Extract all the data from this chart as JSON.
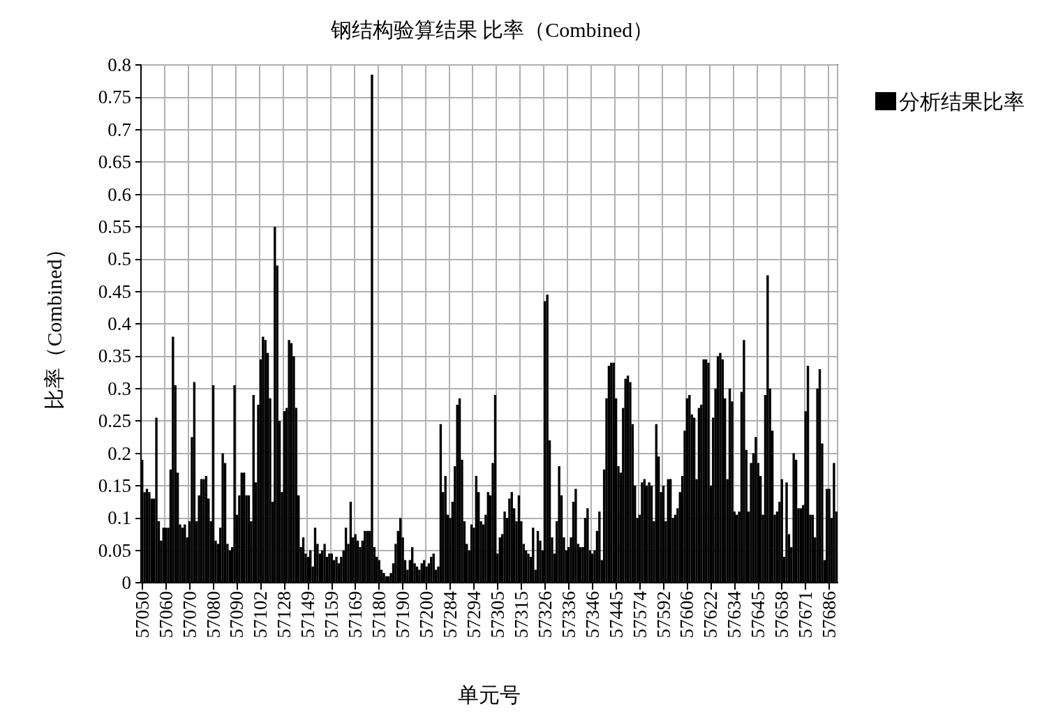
{
  "chart_data": {
    "type": "bar",
    "title": "钢结构验算结果 比率（Combined）",
    "xlabel": "单元号",
    "ylabel": "比率（Combined）",
    "categories": [
      "57050",
      null,
      null,
      null,
      null,
      null,
      null,
      null,
      null,
      null,
      "57060",
      null,
      null,
      null,
      null,
      null,
      null,
      null,
      null,
      null,
      "57070",
      null,
      null,
      null,
      null,
      null,
      null,
      null,
      null,
      null,
      "57080",
      null,
      null,
      null,
      null,
      null,
      null,
      null,
      null,
      null,
      "57090",
      null,
      null,
      null,
      null,
      null,
      null,
      null,
      null,
      null,
      "57102",
      null,
      null,
      null,
      null,
      null,
      null,
      null,
      null,
      null,
      "57128",
      null,
      null,
      null,
      null,
      null,
      null,
      null,
      null,
      null,
      "57149",
      null,
      null,
      null,
      null,
      null,
      null,
      null,
      null,
      null,
      "57159",
      null,
      null,
      null,
      null,
      null,
      null,
      null,
      null,
      null,
      "57169",
      null,
      null,
      null,
      null,
      null,
      null,
      null,
      null,
      null,
      "57180",
      null,
      null,
      null,
      null,
      null,
      null,
      null,
      null,
      null,
      "57190",
      null,
      null,
      null,
      null,
      null,
      null,
      null,
      null,
      null,
      "57200",
      null,
      null,
      null,
      null,
      null,
      null,
      null,
      null,
      null,
      "57284",
      null,
      null,
      null,
      null,
      null,
      null,
      null,
      null,
      null,
      "57294",
      null,
      null,
      null,
      null,
      null,
      null,
      null,
      null,
      null,
      "57305",
      null,
      null,
      null,
      null,
      null,
      null,
      null,
      null,
      null,
      "57315",
      null,
      null,
      null,
      null,
      null,
      null,
      null,
      null,
      null,
      "57326",
      null,
      null,
      null,
      null,
      null,
      null,
      null,
      null,
      null,
      "57336",
      null,
      null,
      null,
      null,
      null,
      null,
      null,
      null,
      null,
      "57346",
      null,
      null,
      null,
      null,
      null,
      null,
      null,
      null,
      null,
      "57445",
      null,
      null,
      null,
      null,
      null,
      null,
      null,
      null,
      null,
      "57574",
      null,
      null,
      null,
      null,
      null,
      null,
      null,
      null,
      null,
      "57592",
      null,
      null,
      null,
      null,
      null,
      null,
      null,
      null,
      null,
      "57606",
      null,
      null,
      null,
      null,
      null,
      null,
      null,
      null,
      null,
      "57622",
      null,
      null,
      null,
      null,
      null,
      null,
      null,
      null,
      null,
      "57634",
      null,
      null,
      null,
      null,
      null,
      null,
      null,
      null,
      null,
      "57645",
      null,
      null,
      null,
      null,
      null,
      null,
      null,
      null,
      null,
      "57658",
      null,
      null,
      null,
      null,
      null,
      null,
      null,
      null,
      null,
      "57671",
      null,
      null,
      null,
      null,
      null,
      null,
      null,
      null,
      null,
      "57686",
      null,
      null,
      null
    ],
    "series": [
      {
        "name": "分析结果比率",
        "color": "#000000",
        "values": [
          0.19,
          0.14,
          0.145,
          0.14,
          0.13,
          0.13,
          0.255,
          0.095,
          0.065,
          0.085,
          0.085,
          0.085,
          0.175,
          0.38,
          0.305,
          0.17,
          0.09,
          0.085,
          0.09,
          0.07,
          0.095,
          0.225,
          0.31,
          0.095,
          0.135,
          0.16,
          0.16,
          0.165,
          0.13,
          0.095,
          0.305,
          0.065,
          0.06,
          0.085,
          0.2,
          0.185,
          0.06,
          0.05,
          0.055,
          0.305,
          0.105,
          0.135,
          0.17,
          0.17,
          0.135,
          0.135,
          0.095,
          0.29,
          0.155,
          0.275,
          0.345,
          0.38,
          0.375,
          0.355,
          0.285,
          0.125,
          0.55,
          0.49,
          0.25,
          0.14,
          0.265,
          0.27,
          0.375,
          0.37,
          0.35,
          0.27,
          0.135,
          0.055,
          0.07,
          0.045,
          0.04,
          0.05,
          0.025,
          0.085,
          0.06,
          0.045,
          0.05,
          0.06,
          0.04,
          0.045,
          0.045,
          0.035,
          0.04,
          0.03,
          0.04,
          0.05,
          0.085,
          0.06,
          0.125,
          0.07,
          0.075,
          0.065,
          0.055,
          0.065,
          0.08,
          0.08,
          0.08,
          0.785,
          0.055,
          0.04,
          0.035,
          0.02,
          0.015,
          0.01,
          0.01,
          0.015,
          0.03,
          0.06,
          0.08,
          0.1,
          0.07,
          0.035,
          0.02,
          0.035,
          0.055,
          0.03,
          0.025,
          0.02,
          0.03,
          0.035,
          0.025,
          0.03,
          0.04,
          0.045,
          0.02,
          0.025,
          0.245,
          0.14,
          0.165,
          0.105,
          0.1,
          0.125,
          0.18,
          0.275,
          0.285,
          0.19,
          0.095,
          0.06,
          0.05,
          0.09,
          0.085,
          0.165,
          0.14,
          0.095,
          0.09,
          0.105,
          0.14,
          0.135,
          0.185,
          0.29,
          0.045,
          0.07,
          0.075,
          0.11,
          0.1,
          0.13,
          0.14,
          0.115,
          0.095,
          0.135,
          0.095,
          0.06,
          0.05,
          0.045,
          0.04,
          0.085,
          0.02,
          0.08,
          0.065,
          0.05,
          0.435,
          0.445,
          0.22,
          0.07,
          0.045,
          0.095,
          0.18,
          0.135,
          0.07,
          0.05,
          0.055,
          0.07,
          0.125,
          0.145,
          0.06,
          0.055,
          0.055,
          0.1,
          0.115,
          0.05,
          0.045,
          0.05,
          0.08,
          0.11,
          0.035,
          0.175,
          0.285,
          0.335,
          0.34,
          0.34,
          0.285,
          0.18,
          0.17,
          0.27,
          0.315,
          0.32,
          0.31,
          0.245,
          0.15,
          0.1,
          0.105,
          0.155,
          0.16,
          0.15,
          0.155,
          0.15,
          0.095,
          0.245,
          0.195,
          0.14,
          0.15,
          0.095,
          0.16,
          0.16,
          0.1,
          0.105,
          0.115,
          0.14,
          0.165,
          0.235,
          0.285,
          0.29,
          0.26,
          0.255,
          0.16,
          0.27,
          0.275,
          0.345,
          0.345,
          0.34,
          0.15,
          0.255,
          0.3,
          0.35,
          0.355,
          0.345,
          0.285,
          0.16,
          0.3,
          0.28,
          0.11,
          0.105,
          0.11,
          0.295,
          0.375,
          0.205,
          0.11,
          0.185,
          0.2,
          0.225,
          0.185,
          0.165,
          0.105,
          0.29,
          0.475,
          0.3,
          0.235,
          0.105,
          0.11,
          0.125,
          0.16,
          0.04,
          0.155,
          0.075,
          0.055,
          0.2,
          0.19,
          0.115,
          0.115,
          0.12,
          0.265,
          0.335,
          0.105,
          0.105,
          0.07,
          0.3,
          0.33,
          0.215,
          0.035,
          0.145,
          0.145,
          0.1,
          0.185,
          0.11
        ]
      }
    ],
    "ylim": [
      0,
      0.8
    ],
    "yticks": [
      0,
      0.05,
      0.1,
      0.15,
      0.2,
      0.25,
      0.3,
      0.35,
      0.4,
      0.45,
      0.5,
      0.55,
      0.6,
      0.65,
      0.7,
      0.75,
      0.8
    ],
    "grid": true,
    "legend": "top right"
  }
}
